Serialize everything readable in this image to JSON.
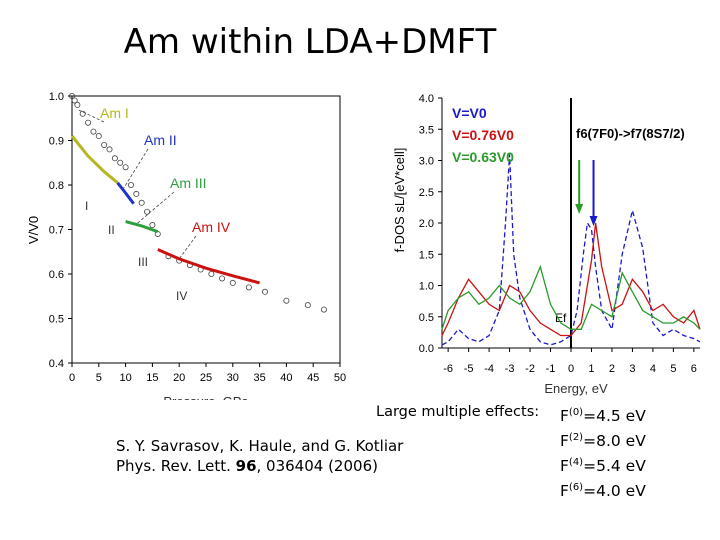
{
  "title": "Am within LDA+DMFT",
  "reference": {
    "authors": "S. Y. Savrasov, K. Haule, and G. Kotliar",
    "journal": "Phys. Rev. Lett.",
    "volume": "96",
    "rest": ", 036404 (2006)"
  },
  "effects_label": "Large multiple effects:",
  "slater": [
    {
      "sym": "F",
      "idx": "(0)",
      "val": "=4.5 eV"
    },
    {
      "sym": "F",
      "idx": "(2)",
      "val": "=8.0 eV"
    },
    {
      "sym": "F",
      "idx": "(4)",
      "val": "=5.4 eV"
    },
    {
      "sym": "F",
      "idx": "(6)",
      "val": "=4.0 eV"
    }
  ],
  "chart_data": [
    {
      "type": "scatter",
      "title": "",
      "xlabel": "Pressure, GPa",
      "ylabel": "V/V0",
      "xlim": [
        0,
        50
      ],
      "ylim": [
        0.4,
        1.0
      ],
      "xticks": [
        "0",
        "5",
        "10",
        "15",
        "20",
        "25",
        "30",
        "35",
        "40",
        "45",
        "50"
      ],
      "yticks": [
        "0.4",
        "0.5",
        "0.6",
        "0.7",
        "0.8",
        "0.9",
        "1.0"
      ],
      "phase_labels": [
        "Am I",
        "Am II",
        "Am III",
        "Am IV"
      ],
      "region_labels": [
        "I",
        "II",
        "III",
        "IV"
      ],
      "experiment_points": [
        [
          0,
          1.0
        ],
        [
          0.5,
          0.99
        ],
        [
          1,
          0.98
        ],
        [
          2,
          0.96
        ],
        [
          3,
          0.94
        ],
        [
          4,
          0.92
        ],
        [
          5,
          0.91
        ],
        [
          6,
          0.89
        ],
        [
          7,
          0.88
        ],
        [
          8,
          0.86
        ],
        [
          9,
          0.85
        ],
        [
          10,
          0.84
        ],
        [
          11,
          0.8
        ],
        [
          12,
          0.78
        ],
        [
          13,
          0.76
        ],
        [
          14,
          0.74
        ],
        [
          15,
          0.71
        ],
        [
          16,
          0.69
        ],
        [
          18,
          0.64
        ],
        [
          20,
          0.63
        ],
        [
          22,
          0.62
        ],
        [
          24,
          0.61
        ],
        [
          26,
          0.6
        ],
        [
          28,
          0.59
        ],
        [
          30,
          0.58
        ],
        [
          33,
          0.57
        ],
        [
          36,
          0.56
        ],
        [
          40,
          0.54
        ],
        [
          44,
          0.53
        ],
        [
          47,
          0.52
        ]
      ],
      "series": [
        {
          "name": "Am I",
          "color": "#b5b821",
          "x": [
            0,
            3,
            6,
            8.5
          ],
          "y": [
            0.91,
            0.865,
            0.83,
            0.805
          ]
        },
        {
          "name": "Am II",
          "color": "#2233cc",
          "x": [
            8.5,
            10,
            11.5
          ],
          "y": [
            0.805,
            0.782,
            0.758
          ]
        },
        {
          "name": "Am III",
          "color": "#2e9e3e",
          "x": [
            10,
            13,
            16
          ],
          "y": [
            0.718,
            0.708,
            0.695
          ]
        },
        {
          "name": "Am IV",
          "color": "#cc1111",
          "x": [
            16,
            20,
            25,
            30,
            35
          ],
          "y": [
            0.655,
            0.634,
            0.613,
            0.596,
            0.58
          ]
        }
      ]
    },
    {
      "type": "line",
      "title": "",
      "xlabel": "Energy, eV",
      "ylabel": "f-DOS sL/[eV*cell]",
      "xlim": [
        -6.3,
        6.3
      ],
      "ylim": [
        0.0,
        4.0
      ],
      "xticks": [
        "-6",
        "-5",
        "-4",
        "-3",
        "-2",
        "-1",
        "0",
        "1",
        "2",
        "3",
        "4",
        "5",
        "6"
      ],
      "yticks": [
        "0.0",
        "0.5",
        "1.0",
        "1.5",
        "2.0",
        "2.5",
        "3.0",
        "3.5",
        "4.0"
      ],
      "ef_label": "Ef",
      "transition_label": "f6(7F0)->f7(8S7/2)",
      "series": [
        {
          "name": "V=V0",
          "color": "#1a1acc",
          "x": [
            -6.3,
            -6,
            -5.5,
            -5,
            -4.5,
            -4,
            -3.5,
            -3.2,
            -3,
            -2.8,
            -2.5,
            -2,
            -1.5,
            -1,
            -0.5,
            0,
            0.3,
            0.6,
            0.8,
            1,
            1.2,
            1.5,
            2,
            2.5,
            3,
            3.5,
            4,
            4.5,
            5,
            5.5,
            6,
            6.3
          ],
          "y": [
            0.05,
            0.1,
            0.3,
            0.15,
            0.1,
            0.2,
            0.6,
            2.0,
            3.1,
            1.5,
            0.8,
            0.3,
            0.1,
            0.05,
            0.1,
            0.2,
            0.6,
            1.5,
            2.0,
            1.9,
            1.3,
            0.6,
            0.3,
            1.5,
            2.2,
            1.6,
            0.4,
            0.2,
            0.3,
            0.2,
            0.15,
            0.1
          ]
        },
        {
          "name": "V=0.76V0",
          "color": "#cc1111",
          "x": [
            -6.3,
            -6,
            -5.5,
            -5,
            -4.5,
            -4,
            -3.5,
            -3,
            -2.5,
            -2,
            -1.5,
            -1,
            -0.5,
            0,
            0.5,
            1,
            1.2,
            1.5,
            2,
            2.5,
            3,
            3.5,
            4,
            4.5,
            5,
            5.5,
            6,
            6.3
          ],
          "y": [
            0.2,
            0.4,
            0.8,
            1.1,
            0.9,
            0.7,
            0.6,
            1.0,
            0.9,
            0.6,
            0.4,
            0.3,
            0.2,
            0.2,
            0.4,
            1.4,
            2.0,
            1.3,
            0.6,
            0.7,
            1.1,
            0.9,
            0.6,
            0.7,
            0.5,
            0.4,
            0.6,
            0.3
          ]
        },
        {
          "name": "V=0.63V0",
          "color": "#2a9a2a",
          "x": [
            -6.3,
            -6,
            -5.5,
            -5,
            -4.5,
            -4,
            -3.5,
            -3,
            -2.5,
            -2,
            -1.5,
            -1,
            -0.5,
            0,
            0.5,
            1,
            1.5,
            2,
            2.5,
            3,
            3.5,
            4,
            4.5,
            5,
            5.5,
            6,
            6.3
          ],
          "y": [
            0.3,
            0.6,
            0.8,
            0.9,
            0.7,
            0.8,
            1.0,
            0.8,
            0.7,
            0.9,
            1.3,
            0.7,
            0.4,
            0.3,
            0.3,
            0.7,
            0.6,
            0.5,
            1.2,
            0.9,
            0.6,
            0.5,
            0.4,
            0.4,
            0.5,
            0.4,
            0.3
          ]
        }
      ]
    }
  ]
}
